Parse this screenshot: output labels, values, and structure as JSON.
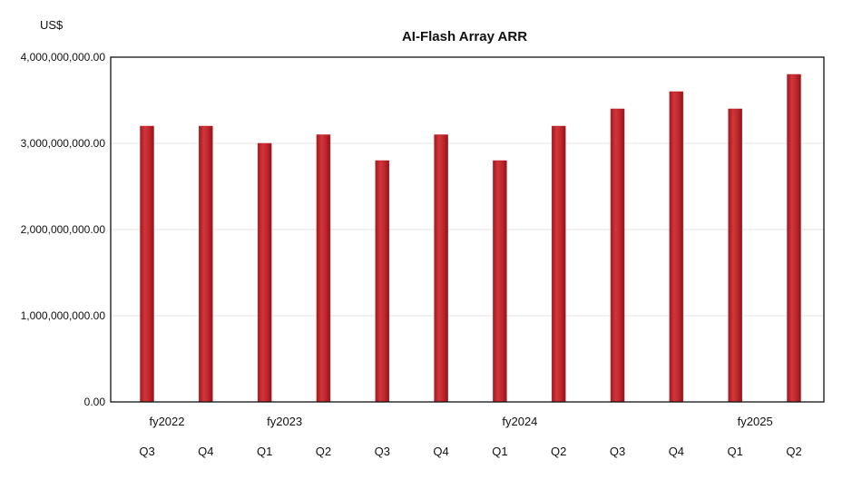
{
  "chart_data": {
    "type": "bar",
    "title": "AI-Flash Array ARR",
    "ylabel": "US$",
    "xlabel": "",
    "ylim": [
      0,
      4000000000
    ],
    "y_ticks": [
      {
        "value": 0,
        "label": "0.00"
      },
      {
        "value": 1000000000,
        "label": "1,000,000,000.00"
      },
      {
        "value": 2000000000,
        "label": "2,000,000,000.00"
      },
      {
        "value": 3000000000,
        "label": "3,000,000,000.00"
      },
      {
        "value": 4000000000,
        "label": "4,000,000,000.00"
      }
    ],
    "grid": true,
    "legend": "none",
    "bar_color": "#c0272d",
    "categories": [
      "Q3",
      "Q4",
      "Q1",
      "Q2",
      "Q3",
      "Q4",
      "Q1",
      "Q2",
      "Q3",
      "Q4",
      "Q1",
      "Q2"
    ],
    "fiscal_year_labels": [
      {
        "label": "fy2022",
        "category_index": 0
      },
      {
        "label": "fy2023",
        "category_index": 2
      },
      {
        "label": "fy2024",
        "category_index": 6
      },
      {
        "label": "fy2025",
        "category_index": 10
      }
    ],
    "values": [
      3200000000,
      3200000000,
      3000000000,
      3100000000,
      2800000000,
      3100000000,
      2800000000,
      3200000000,
      3400000000,
      3600000000,
      3400000000,
      3800000000
    ]
  }
}
